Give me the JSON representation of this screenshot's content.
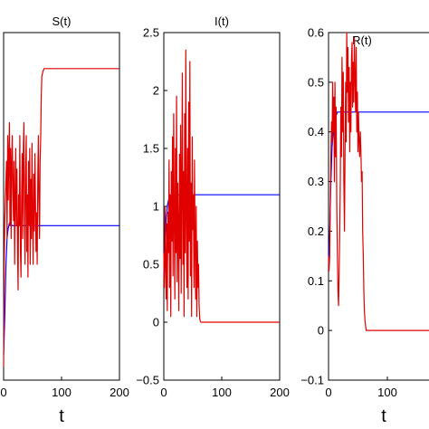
{
  "chart_data": [
    {
      "type": "line",
      "title": "S(t)",
      "xlabel": "t",
      "ylabel": "",
      "xlim": [
        0,
        200
      ],
      "ylim": [
        0,
        1.35
      ],
      "xticks": [
        "0",
        "100",
        "200"
      ],
      "yticks": [],
      "grid": false,
      "series": [
        {
          "color": "#0000ff",
          "x": [
            0,
            2,
            4,
            6,
            8,
            10,
            15,
            20,
            30,
            50,
            100,
            150,
            200
          ],
          "y": [
            0.1,
            0.25,
            0.45,
            0.55,
            0.59,
            0.61,
            0.6,
            0.6,
            0.6,
            0.6,
            0.6,
            0.6,
            0.6
          ]
        },
        {
          "color": "#e00000",
          "x": [
            0,
            1,
            2,
            3,
            4,
            5,
            6,
            7,
            8,
            9,
            10,
            11,
            12,
            13,
            14,
            15,
            16,
            17,
            18,
            19,
            20,
            21,
            22,
            23,
            24,
            25,
            26,
            27,
            28,
            29,
            30,
            31,
            32,
            33,
            34,
            35,
            36,
            37,
            38,
            39,
            40,
            41,
            42,
            43,
            44,
            45,
            46,
            47,
            48,
            49,
            50,
            51,
            52,
            53,
            54,
            55,
            56,
            57,
            58,
            59,
            60,
            61,
            62,
            63,
            64,
            65,
            66,
            68,
            70,
            75,
            80,
            90,
            100,
            150,
            200
          ],
          "y": [
            0.05,
            0.45,
            0.62,
            0.7,
            0.78,
            0.85,
            0.55,
            0.95,
            0.7,
            0.88,
            1.0,
            0.6,
            0.9,
            0.55,
            0.85,
            0.95,
            0.75,
            0.62,
            0.85,
            0.45,
            0.7,
            0.9,
            0.6,
            0.82,
            0.5,
            0.35,
            0.72,
            0.6,
            0.95,
            0.5,
            0.4,
            0.7,
            0.88,
            0.55,
            0.9,
            1.0,
            0.65,
            0.45,
            0.8,
            0.95,
            0.5,
            0.72,
            0.4,
            0.85,
            0.6,
            0.9,
            0.45,
            0.78,
            0.55,
            0.92,
            0.62,
            0.45,
            0.8,
            0.58,
            0.88,
            0.7,
            0.5,
            0.65,
            0.45,
            0.8,
            0.95,
            0.7,
            0.55,
            0.85,
            0.95,
            1.1,
            1.18,
            1.2,
            1.21,
            1.21,
            1.21,
            1.21,
            1.21,
            1.21,
            1.21
          ]
        }
      ]
    },
    {
      "type": "line",
      "title": "I(t)",
      "xlabel": "",
      "ylabel": "",
      "xlim": [
        0,
        200
      ],
      "ylim": [
        -0.5,
        2.5
      ],
      "xticks": [
        "0",
        "100",
        "200"
      ],
      "yticks": [
        "−0.5",
        "0",
        "0.5",
        "1",
        "1.5",
        "2",
        "2.5"
      ],
      "grid": false,
      "series": [
        {
          "color": "#0000ff",
          "x": [
            0,
            2,
            4,
            6,
            8,
            10,
            15,
            20,
            30,
            50,
            100,
            150,
            200
          ],
          "y": [
            0.4,
            0.7,
            0.9,
            1.0,
            1.05,
            1.08,
            1.1,
            1.1,
            1.1,
            1.1,
            1.1,
            1.1,
            1.1
          ]
        },
        {
          "color": "#e00000",
          "x": [
            0,
            1,
            2,
            3,
            4,
            5,
            6,
            7,
            8,
            9,
            10,
            11,
            12,
            13,
            14,
            15,
            16,
            17,
            18,
            19,
            20,
            21,
            22,
            23,
            24,
            25,
            26,
            27,
            28,
            29,
            30,
            31,
            32,
            33,
            34,
            35,
            36,
            37,
            38,
            39,
            40,
            41,
            42,
            43,
            44,
            45,
            46,
            47,
            48,
            49,
            50,
            51,
            52,
            53,
            54,
            55,
            56,
            57,
            58,
            59,
            60,
            61,
            62,
            63,
            64,
            65,
            70,
            80,
            100,
            150,
            200
          ],
          "y": [
            0.6,
            0.3,
            1.0,
            0.5,
            0.2,
            0.85,
            0.1,
            0.95,
            0.6,
            1.4,
            0.3,
            1.1,
            0.05,
            1.3,
            0.7,
            1.6,
            0.4,
            1.8,
            0.9,
            0.2,
            1.5,
            0.6,
            1.95,
            0.35,
            1.2,
            0.8,
            0.1,
            1.45,
            0.55,
            1.7,
            0.25,
            1.1,
            2.15,
            0.5,
            1.3,
            0.05,
            1.8,
            0.6,
            2.35,
            0.9,
            0.3,
            1.5,
            0.2,
            1.9,
            0.7,
            2.25,
            0.4,
            1.2,
            0.05,
            1.6,
            0.8,
            1.1,
            0.3,
            1.4,
            0.6,
            0.2,
            1.0,
            0.05,
            0.7,
            0.3,
            0.5,
            0.15,
            0.03,
            0.01,
            0.0,
            0.0,
            0.0,
            0.0,
            0.0,
            0.0,
            0.0
          ]
        }
      ]
    },
    {
      "type": "line",
      "title": "R(t)",
      "xlabel": "t",
      "ylabel": "",
      "xlim": [
        0,
        200
      ],
      "ylim": [
        -0.1,
        0.6
      ],
      "xticks": [
        "0",
        "100"
      ],
      "yticks": [
        "−0.1",
        "0",
        "0.1",
        "0.2",
        "0.3",
        "0.4",
        "0.5",
        "0.6"
      ],
      "grid": false,
      "series": [
        {
          "color": "#0000ff",
          "x": [
            0,
            2,
            4,
            6,
            8,
            10,
            12,
            15,
            20,
            30,
            50,
            100,
            150,
            200
          ],
          "y": [
            0.13,
            0.2,
            0.3,
            0.37,
            0.4,
            0.42,
            0.43,
            0.44,
            0.44,
            0.44,
            0.44,
            0.44,
            0.44,
            0.44
          ]
        },
        {
          "color": "#e00000",
          "x": [
            0,
            1,
            2,
            3,
            4,
            5,
            6,
            7,
            8,
            9,
            10,
            11,
            12,
            13,
            14,
            15,
            16,
            17,
            18,
            19,
            20,
            21,
            22,
            23,
            24,
            25,
            26,
            27,
            28,
            29,
            30,
            31,
            32,
            33,
            34,
            35,
            36,
            37,
            38,
            39,
            40,
            41,
            42,
            43,
            44,
            45,
            46,
            47,
            48,
            49,
            50,
            51,
            52,
            53,
            54,
            55,
            56,
            57,
            58,
            59,
            60,
            61,
            62,
            63,
            64,
            65,
            66,
            68,
            70,
            75,
            80,
            100,
            150,
            200
          ],
          "y": [
            0.15,
            0.12,
            0.15,
            0.25,
            0.35,
            0.42,
            0.38,
            0.5,
            0.4,
            0.47,
            0.3,
            0.5,
            0.35,
            0.45,
            0.25,
            0.15,
            0.08,
            0.05,
            0.12,
            0.2,
            0.3,
            0.45,
            0.35,
            0.55,
            0.4,
            0.52,
            0.3,
            0.2,
            0.35,
            0.5,
            0.38,
            0.6,
            0.48,
            0.57,
            0.42,
            0.53,
            0.36,
            0.5,
            0.4,
            0.55,
            0.58,
            0.45,
            0.54,
            0.46,
            0.59,
            0.5,
            0.44,
            0.57,
            0.4,
            0.48,
            0.36,
            0.44,
            0.38,
            0.35,
            0.4,
            0.36,
            0.3,
            0.32,
            0.2,
            0.15,
            0.08,
            0.04,
            0.02,
            0.01,
            0.0,
            0.0,
            0.0,
            0.0,
            0.0,
            0.0,
            0.0,
            0.0,
            0.0,
            0.0
          ]
        }
      ]
    }
  ]
}
